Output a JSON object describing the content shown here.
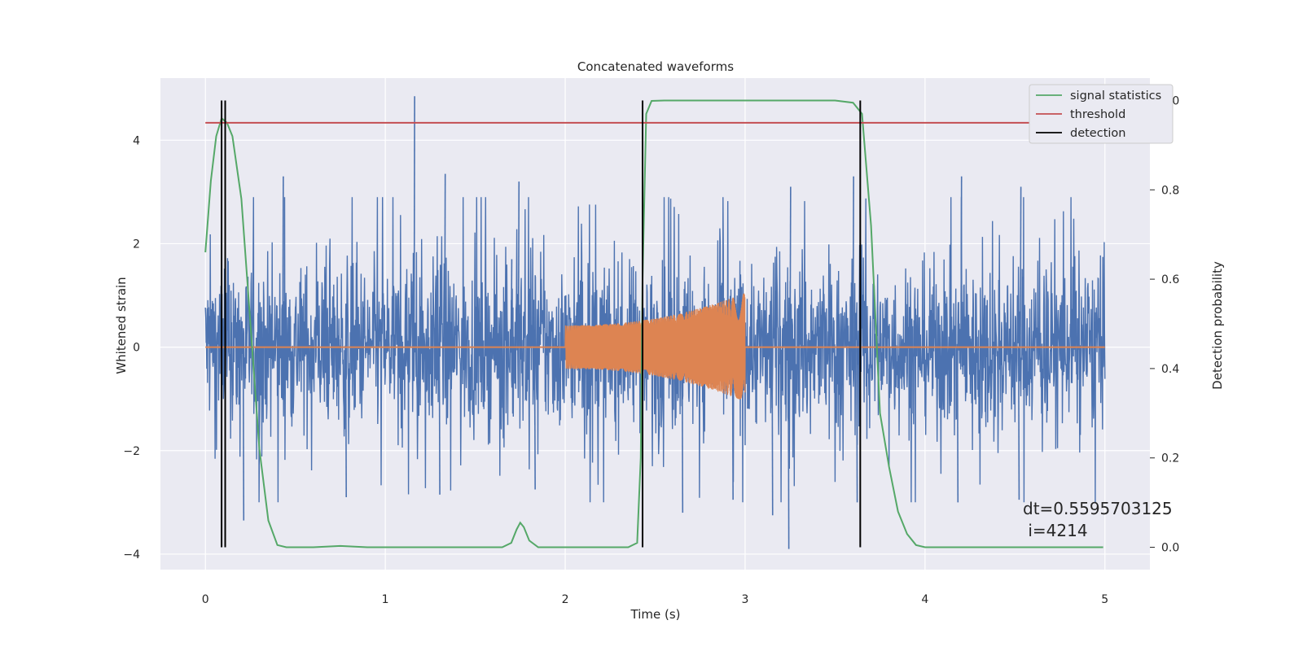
{
  "chart_data": {
    "type": "line",
    "title": "Concatenated waveforms",
    "xlabel": "Time (s)",
    "ylabel_left": "Whitened strain",
    "ylabel_right": "Detection probability",
    "xlim": [
      -0.25,
      5.25
    ],
    "ylim_left": [
      -4.3,
      5.2
    ],
    "ylim_right": [
      -0.05,
      1.05
    ],
    "x_ticks": [
      0,
      1,
      2,
      3,
      4,
      5
    ],
    "y_ticks_left": [
      -4,
      -2,
      0,
      2,
      4
    ],
    "y_ticks_right": [
      0.0,
      0.2,
      0.4,
      0.6,
      0.8,
      1.0
    ],
    "x_tick_labels": [
      "0",
      "1",
      "2",
      "3",
      "4",
      "5"
    ],
    "y_tick_labels_left": [
      "−4",
      "−2",
      "0",
      "2",
      "4"
    ],
    "y_tick_labels_right": [
      "0.0",
      "0.2",
      "0.4",
      "0.6",
      "0.8",
      "1.0"
    ],
    "grid": true,
    "legend_position": "top-right",
    "legend": [
      {
        "label": "signal statistics",
        "color": "#55a868"
      },
      {
        "label": "threshold",
        "color": "#c44e52"
      },
      {
        "label": "detection",
        "color": "#000000"
      }
    ],
    "annotation": {
      "line1": "dt=0.5595703125",
      "line2": " i=4214"
    },
    "series": [
      {
        "kind": "noise",
        "color": "#4c72b0",
        "axis": "left",
        "x_range": [
          0,
          5
        ],
        "typical_range": [
          -1.3,
          1.4
        ],
        "spikes": [
          [
            1.16,
            4.85
          ],
          [
            0.43,
            3.3
          ],
          [
            1.33,
            3.35
          ],
          [
            1.74,
            3.2
          ],
          [
            3.25,
            3.1
          ],
          [
            3.6,
            3.3
          ],
          [
            4.2,
            3.3
          ],
          [
            4.53,
            3.1
          ],
          [
            0.78,
            -2.9
          ],
          [
            1.3,
            -2.85
          ],
          [
            1.7,
            1.7
          ],
          [
            3.24,
            -3.9
          ],
          [
            0.21,
            -3.35
          ],
          [
            2.65,
            -3.2
          ],
          [
            3.15,
            -3.25
          ],
          [
            3.62,
            -3.0
          ],
          [
            4.18,
            -3.0
          ],
          [
            4.52,
            -2.95
          ],
          [
            1.83,
            -2.75
          ],
          [
            2.93,
            -2.95
          ]
        ]
      },
      {
        "kind": "chirp",
        "color": "#dd8452",
        "axis": "left",
        "x_range": [
          2.0,
          3.0
        ],
        "amplitude_start": 0.42,
        "amplitude_end": 1.05,
        "baseline": 0
      },
      {
        "name": "signal statistics",
        "color": "#55a868",
        "axis": "right",
        "x": [
          0,
          0.03,
          0.06,
          0.09,
          0.12,
          0.15,
          0.2,
          0.25,
          0.3,
          0.35,
          0.4,
          0.45,
          0.6,
          0.75,
          0.9,
          1.5,
          1.65,
          1.7,
          1.73,
          1.75,
          1.77,
          1.8,
          1.85,
          1.9,
          2.0,
          2.35,
          2.4,
          2.42,
          2.43,
          2.45,
          2.48,
          2.55,
          2.7,
          3.0,
          3.5,
          3.6,
          3.65,
          3.7,
          3.75,
          3.8,
          3.85,
          3.9,
          3.95,
          4.0,
          4.5,
          4.99
        ],
        "values": [
          0.66,
          0.82,
          0.92,
          0.96,
          0.95,
          0.92,
          0.78,
          0.5,
          0.22,
          0.06,
          0.005,
          0.0,
          0.0,
          0.003,
          0.0,
          0.0,
          0.0,
          0.01,
          0.04,
          0.055,
          0.045,
          0.015,
          0.0,
          0.0,
          0.0,
          0.0,
          0.01,
          0.2,
          0.6,
          0.97,
          0.999,
          1.0,
          1.0,
          1.0,
          1.0,
          0.995,
          0.97,
          0.72,
          0.3,
          0.18,
          0.08,
          0.03,
          0.005,
          0.0,
          0.0,
          0.0
        ]
      },
      {
        "name": "threshold",
        "color": "#c44e52",
        "axis": "right",
        "x": [
          0,
          5
        ],
        "values": [
          0.95,
          0.95
        ]
      }
    ],
    "detections": {
      "color": "#000000",
      "axis": "right",
      "x": [
        0.09,
        0.11,
        2.43,
        3.64
      ],
      "ymin": 0,
      "ymax": 1.0
    }
  }
}
